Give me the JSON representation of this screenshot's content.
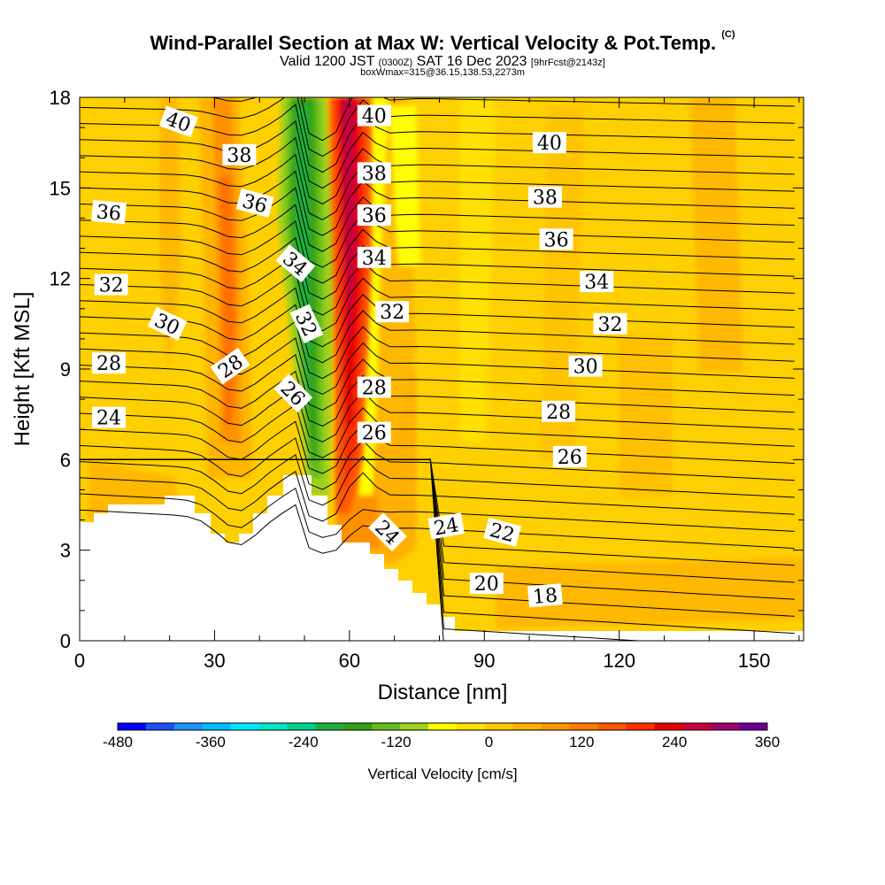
{
  "chart_data": {
    "type": "heatmap",
    "title": "Wind-Parallel Section at Max W: Vertical Velocity & Pot.Temp.",
    "title_mark": "(C)",
    "subtitle": {
      "main_prefix": "Valid 1200 JST",
      "zulu": "(0300Z)",
      "main_suffix": "SAT 16 Dec 2023",
      "fcst": "[9hrFcst@2143z]"
    },
    "subtitle2": "boxWmax=315@36.15,138.53,2273m",
    "xlabel": "Distance [nm]",
    "ylabel": "Height [Kft MSL]",
    "xlim": [
      0,
      161
    ],
    "ylim": [
      0,
      18
    ],
    "x_ticks": [
      0,
      30,
      60,
      90,
      120,
      150
    ],
    "y_ticks": [
      0,
      3,
      6,
      9,
      12,
      15,
      18
    ],
    "colorbar": {
      "label": "Vertical Velocity [cm/s]",
      "ticks": [
        -480,
        -360,
        -240,
        -120,
        0,
        120,
        240,
        360
      ],
      "colors": [
        "#0000ff",
        "#1e50ff",
        "#1e90ff",
        "#00bfff",
        "#00e6ff",
        "#00e8c8",
        "#00d08c",
        "#1eb43c",
        "#32a014",
        "#64be1e",
        "#a0d21e",
        "#ffff00",
        "#ffe000",
        "#ffc800",
        "#ffb000",
        "#ff9600",
        "#ff7a00",
        "#ff5a00",
        "#ff2d00",
        "#e60000",
        "#c8003c",
        "#a0006e",
        "#6e0096"
      ]
    },
    "theta_contour_labels": [
      {
        "v": "40",
        "x": 22,
        "y": 17.2,
        "r": 20
      },
      {
        "v": "38",
        "x": 35.5,
        "y": 16.1,
        "r": 0
      },
      {
        "v": "36",
        "x": 6.5,
        "y": 14.2,
        "r": 5
      },
      {
        "v": "36",
        "x": 39,
        "y": 14.5,
        "r": 15
      },
      {
        "v": "34",
        "x": 48,
        "y": 12.5,
        "r": 40
      },
      {
        "v": "32",
        "x": 7,
        "y": 11.8,
        "r": 0
      },
      {
        "v": "32",
        "x": 50.5,
        "y": 10.5,
        "r": 65
      },
      {
        "v": "30",
        "x": 19.5,
        "y": 10.5,
        "r": 25
      },
      {
        "v": "28",
        "x": 6.5,
        "y": 9.2,
        "r": 0
      },
      {
        "v": "28",
        "x": 33.5,
        "y": 9.1,
        "r": -35
      },
      {
        "v": "26",
        "x": 47.5,
        "y": 8.2,
        "r": 45
      },
      {
        "v": "24",
        "x": 6.5,
        "y": 7.4,
        "r": 0
      },
      {
        "v": "40",
        "x": 65.5,
        "y": 17.4,
        "r": 0
      },
      {
        "v": "38",
        "x": 65.5,
        "y": 15.5,
        "r": 0
      },
      {
        "v": "36",
        "x": 65.5,
        "y": 14.1,
        "r": 0
      },
      {
        "v": "34",
        "x": 65.5,
        "y": 12.7,
        "r": 0
      },
      {
        "v": "32",
        "x": 69.5,
        "y": 10.9,
        "r": 0
      },
      {
        "v": "28",
        "x": 65.5,
        "y": 8.4,
        "r": 0
      },
      {
        "v": "26",
        "x": 65.5,
        "y": 6.9,
        "r": 0
      },
      {
        "v": "24",
        "x": 68.5,
        "y": 3.6,
        "r": 45
      },
      {
        "v": "24",
        "x": 81.5,
        "y": 3.8,
        "r": -10
      },
      {
        "v": "22",
        "x": 94,
        "y": 3.6,
        "r": 15
      },
      {
        "v": "20",
        "x": 90.5,
        "y": 1.9,
        "r": 0
      },
      {
        "v": "18",
        "x": 103.5,
        "y": 1.5,
        "r": -5
      },
      {
        "v": "40",
        "x": 104.5,
        "y": 16.5,
        "r": 0
      },
      {
        "v": "38",
        "x": 103.5,
        "y": 14.7,
        "r": 0
      },
      {
        "v": "36",
        "x": 106,
        "y": 13.3,
        "r": 0
      },
      {
        "v": "34",
        "x": 115,
        "y": 11.9,
        "r": 0
      },
      {
        "v": "32",
        "x": 118,
        "y": 10.5,
        "r": 0
      },
      {
        "v": "30",
        "x": 112.5,
        "y": 9.1,
        "r": 0
      },
      {
        "v": "28",
        "x": 106.5,
        "y": 7.6,
        "r": 0
      },
      {
        "v": "26",
        "x": 109,
        "y": 6.1,
        "r": 0
      }
    ]
  }
}
